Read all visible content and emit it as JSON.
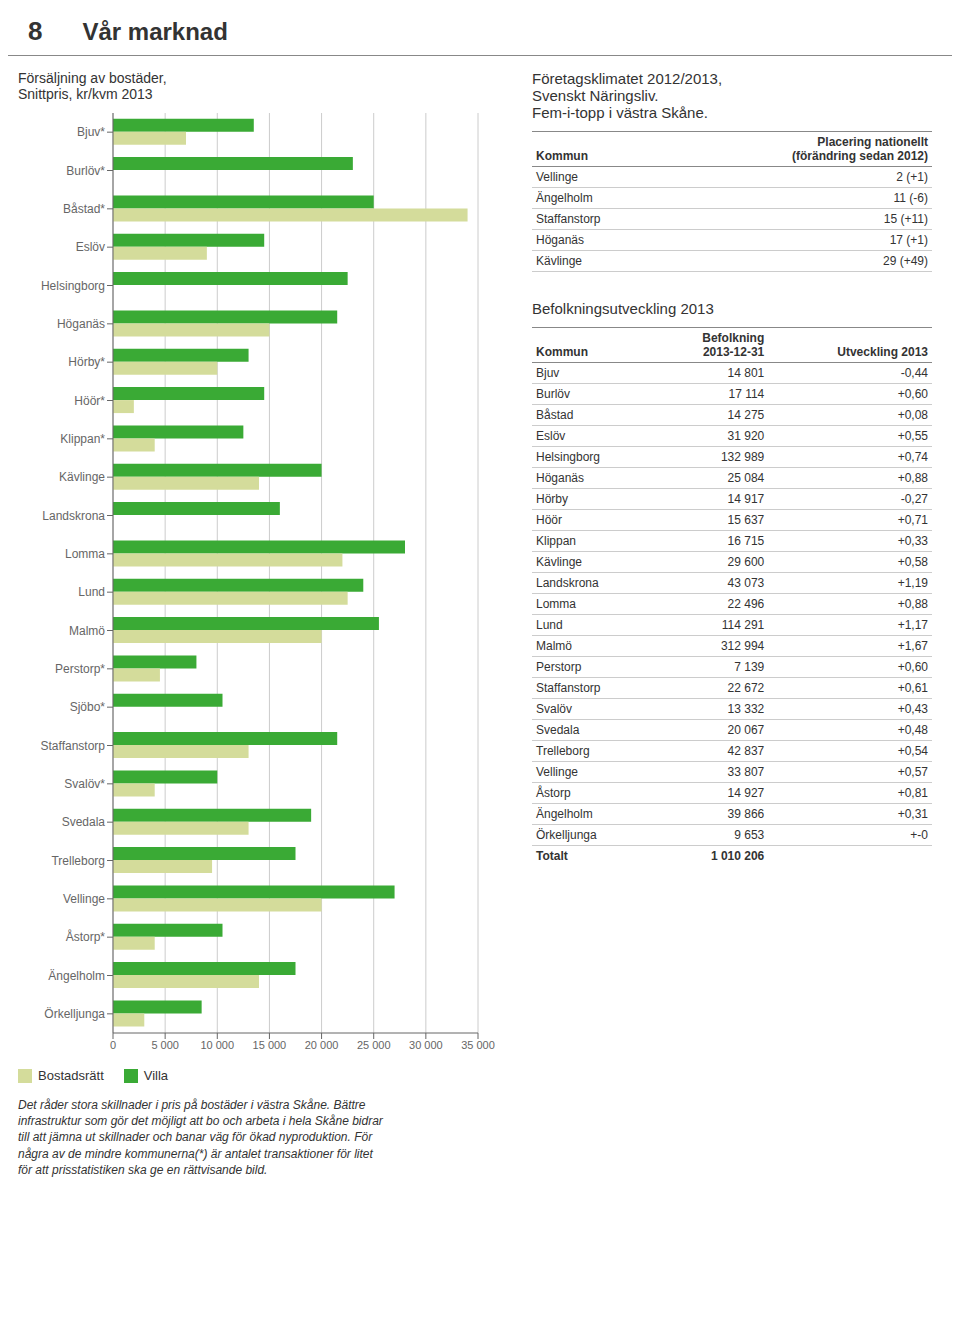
{
  "title": "Vår marknad",
  "annotations": [
    "8"
  ],
  "chart_data": [
    {
      "type": "bar",
      "title": "Försäljning av bostäder,\nSnittpris, kr/kvm 2013",
      "orientation": "horizontal",
      "grid": true,
      "legend": "lower left",
      "categories": [
        "Bjuv*",
        "Burlöv*",
        "Båstad*",
        "Eslöv",
        "Helsingborg",
        "Höganäs",
        "Hörby*",
        "Höör*",
        "Klippan*",
        "Kävlinge",
        "Landskrona",
        "Lomma",
        "Lund",
        "Malmö",
        "Perstorp*",
        "Sjöbo*",
        "Staffanstorp",
        "Svalöv*",
        "Svedala",
        "Trelleborg",
        "Vellinge",
        "Åstorp*",
        "Ängelholm",
        "Örkelljunga"
      ],
      "series": [
        {
          "name": "Villa",
          "color": "#3aaa35",
          "values": [
            13500,
            23000,
            25000,
            14500,
            22500,
            21500,
            13000,
            14500,
            12500,
            20000,
            16000,
            28000,
            24000,
            25500,
            8000,
            10500,
            21500,
            10000,
            19000,
            17500,
            27000,
            10500,
            17500,
            8500
          ]
        },
        {
          "name": "Bostadsrätt",
          "color": "#d4dc9b",
          "values": [
            7000,
            0,
            34000,
            9000,
            0,
            15000,
            10000,
            2000,
            4000,
            14000,
            0,
            22000,
            22500,
            20000,
            4500,
            0,
            13000,
            4000,
            13000,
            9500,
            20000,
            4000,
            14000,
            3000
          ]
        }
      ],
      "xlim": [
        0,
        35000
      ],
      "xticks": [
        0,
        {
          "value": 5000,
          "label": "5 000"
        },
        {
          "value": 10000,
          "label": "10 000"
        },
        {
          "value": 15000,
          "label": "15 000"
        },
        {
          "value": 20000,
          "label": "20 000"
        },
        {
          "value": 25000,
          "label": "25 000"
        },
        {
          "value": 30000,
          "label": "30 000"
        },
        {
          "value": 35000,
          "label": "35 000"
        }
      ],
      "annotations": [
        "Det råder stora skillnader i pris på bostäder i västra Skåne. Bättre\ninfrastruktur som gör det möjligt att bo och arbeta i hela Skåne bidrar\ntill att jämna ut skillnader och banar väg för ökad nyproduktion. För\nnågra av de mindre kommunerna(*) är antalet transaktioner för litet\nför att prisstatistiken ska ge en rättvisande bild."
      ]
    },
    {
      "type": "table",
      "title": "Företagsklimatet 2012/2013,\nSvenskt Näringsliv.\nFem-i-topp i västra Skåne.",
      "columns": [
        "Kommun",
        "Placering nationellt\n(förändring sedan 2012)"
      ],
      "rows": [
        [
          "Vellinge",
          "2 (+1)"
        ],
        [
          "Ängelholm",
          "11 (-6)"
        ],
        [
          "Staffanstorp",
          "15 (+11)"
        ],
        [
          "Höganäs",
          "17 (+1)"
        ],
        [
          "Kävlinge",
          "29 (+49)"
        ]
      ]
    },
    {
      "type": "table",
      "title": "Befolkningsutveckling 2013",
      "columns": [
        "Kommun",
        "Befolkning\n2013-12-31",
        "Utveckling 2013"
      ],
      "rows": [
        [
          "Bjuv",
          "14 801",
          "-0,44"
        ],
        [
          "Burlöv",
          "17 114",
          "+0,60"
        ],
        [
          "Båstad",
          "14 275",
          "+0,08"
        ],
        [
          "Eslöv",
          "31 920",
          "+0,55"
        ],
        [
          "Helsingborg",
          "132 989",
          "+0,74"
        ],
        [
          "Höganäs",
          "25 084",
          "+0,88"
        ],
        [
          "Hörby",
          "14 917",
          "-0,27"
        ],
        [
          "Höör",
          "15 637",
          "+0,71"
        ],
        [
          "Klippan",
          "16 715",
          "+0,33"
        ],
        [
          "Kävlinge",
          "29 600",
          "+0,58"
        ],
        [
          "Landskrona",
          "43 073",
          "+1,19"
        ],
        [
          "Lomma",
          "22 496",
          "+0,88"
        ],
        [
          "Lund",
          "114 291",
          "+1,17"
        ],
        [
          "Malmö",
          "312 994",
          "+1,67"
        ],
        [
          "Perstorp",
          "7 139",
          "+0,60"
        ],
        [
          "Staffanstorp",
          "22 672",
          "+0,61"
        ],
        [
          "Svalöv",
          "13 332",
          "+0,43"
        ],
        [
          "Svedala",
          "20 067",
          "+0,48"
        ],
        [
          "Trelleborg",
          "42 837",
          "+0,54"
        ],
        [
          "Vellinge",
          "33 807",
          "+0,57"
        ],
        [
          "Åstorp",
          "14 927",
          "+0,81"
        ],
        [
          "Ängelholm",
          "39 866",
          "+0,31"
        ],
        [
          "Örkelljunga",
          "9 653",
          "+-0"
        ]
      ],
      "total": [
        "Totalt",
        "1 010 206"
      ]
    }
  ]
}
